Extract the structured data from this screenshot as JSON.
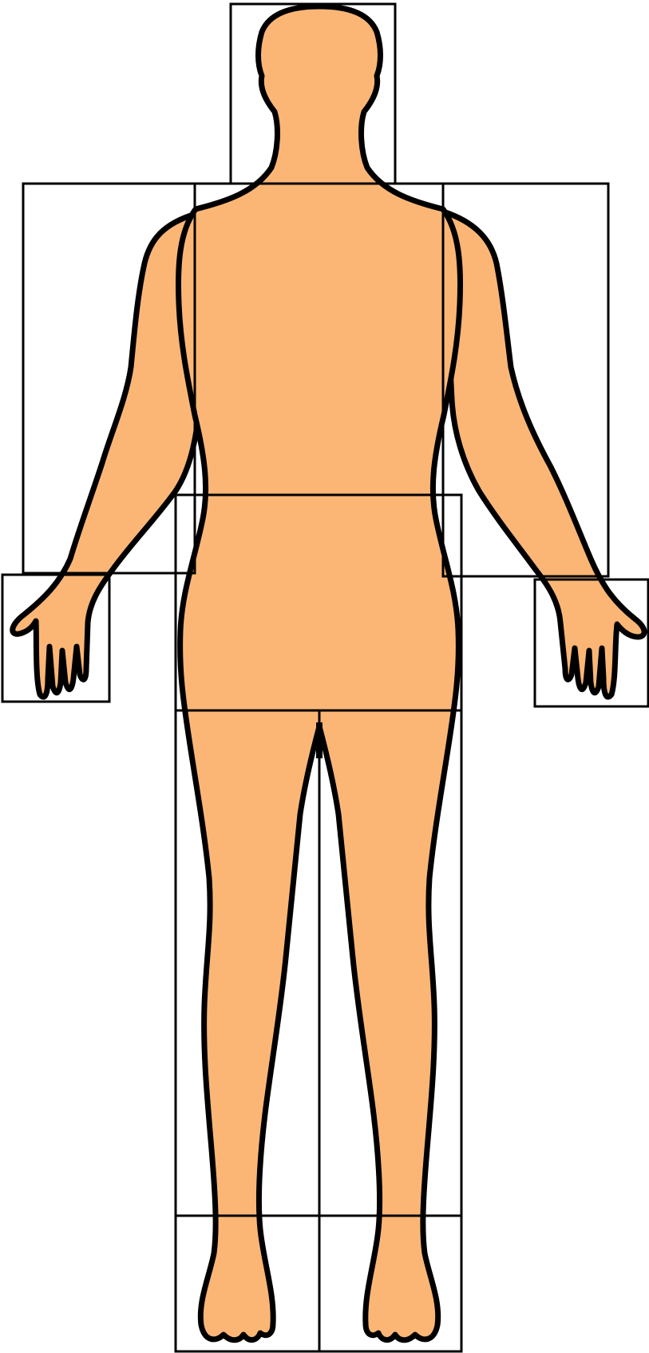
{
  "diagram": {
    "skin_color": "#fbb676",
    "outline_color": "#000000",
    "background": "#ffffff",
    "regions": [
      "head",
      "left-arm",
      "right-arm",
      "torso",
      "pelvis",
      "left-hand",
      "right-hand",
      "left-leg",
      "right-leg",
      "left-foot",
      "right-foot"
    ]
  }
}
